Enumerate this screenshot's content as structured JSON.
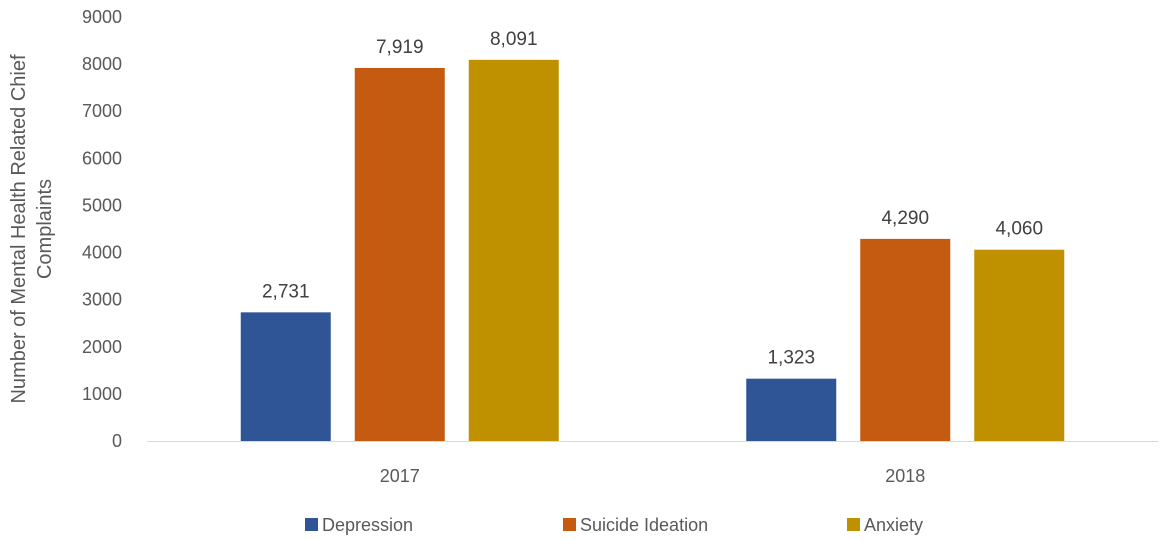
{
  "chart_data": {
    "type": "bar",
    "title": "",
    "xlabel": "",
    "ylabel": [
      "Number of Mental Health Related Chief",
      "Complaints"
    ],
    "ylim": [
      0,
      9000
    ],
    "yticks": [
      0,
      1000,
      2000,
      3000,
      4000,
      5000,
      6000,
      7000,
      8000,
      9000
    ],
    "grid": false,
    "legend_position": "bottom",
    "categories": [
      "2017",
      "2018"
    ],
    "series": [
      {
        "name": "Depression",
        "color": "#2F5597",
        "values": [
          2731,
          1323
        ],
        "labels": [
          "2,731",
          "1,323"
        ]
      },
      {
        "name": "Suicide Ideation",
        "color": "#C55A11",
        "values": [
          7919,
          4290
        ],
        "labels": [
          "7,919",
          "4,290"
        ]
      },
      {
        "name": "Anxiety",
        "color": "#BF9000",
        "values": [
          8091,
          4060
        ],
        "labels": [
          "8,091",
          "4,060"
        ]
      }
    ]
  }
}
